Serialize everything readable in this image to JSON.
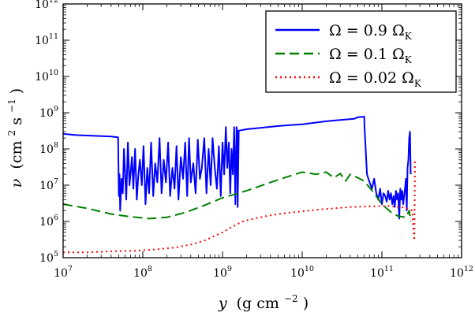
{
  "chart_data": {
    "type": "line",
    "xlabel": {
      "var": "y",
      "unit_main": "(g cm",
      "unit_sup": "−2",
      "unit_end": ")"
    },
    "ylabel": {
      "var": "ν",
      "unit_main": "(cm",
      "unit_sup1": "2",
      "unit_mid": "s",
      "unit_sup2": "−1",
      "unit_end": ")"
    },
    "x_scale": "log",
    "y_scale": "log",
    "xlim": [
      10000000.0,
      1000000000000.0
    ],
    "ylim": [
      100000.0,
      1000000000000.0
    ],
    "x_ticks": [
      {
        "base": "10",
        "exp": "7",
        "value": 10000000.0
      },
      {
        "base": "10",
        "exp": "8",
        "value": 100000000.0
      },
      {
        "base": "10",
        "exp": "9",
        "value": 1000000000.0
      },
      {
        "base": "10",
        "exp": "10",
        "value": 10000000000.0
      },
      {
        "base": "10",
        "exp": "11",
        "value": 100000000000.0
      },
      {
        "base": "10",
        "exp": "12",
        "value": 1000000000000.0
      }
    ],
    "y_ticks": [
      {
        "base": "10",
        "exp": "5",
        "value": 100000.0
      },
      {
        "base": "10",
        "exp": "6",
        "value": 1000000.0
      },
      {
        "base": "10",
        "exp": "7",
        "value": 10000000.0
      },
      {
        "base": "10",
        "exp": "8",
        "value": 100000000.0
      },
      {
        "base": "10",
        "exp": "9",
        "value": 1000000000.0
      },
      {
        "base": "10",
        "exp": "10",
        "value": 10000000000.0
      },
      {
        "base": "10",
        "exp": "11",
        "value": 100000000000.0
      },
      {
        "base": "10",
        "exp": "12",
        "value": 1000000000000.0
      }
    ],
    "grid": false,
    "legend_position": "top-right",
    "series": [
      {
        "name": "Ω = 0.9 ΩK",
        "legend": {
          "lhs": "Ω = 0.9 Ω",
          "sub": "K"
        },
        "color": "#0000ff",
        "dash": "solid",
        "x": [
          10000000.0,
          15000000.0,
          25000000.0,
          40000000.0,
          49000000.0,
          50000000.0,
          51000000.0,
          52000000.0,
          54000000.0,
          56000000.0,
          58000000.0,
          60000000.0,
          62000000.0,
          65000000.0,
          68000000.0,
          70000000.0,
          73000000.0,
          76000000.0,
          80000000.0,
          84000000.0,
          88000000.0,
          92000000.0,
          97000000.0,
          102000000.0,
          108000000.0,
          114000000.0,
          120000000.0,
          127000000.0,
          135000000.0,
          143000000.0,
          152000000.0,
          162000000.0,
          172000000.0,
          183000000.0,
          195000000.0,
          208000000.0,
          220000000.0,
          235000000.0,
          250000000.0,
          265000000.0,
          280000000.0,
          300000000.0,
          320000000.0,
          340000000.0,
          360000000.0,
          380000000.0,
          400000000.0,
          430000000.0,
          460000000.0,
          490000000.0,
          520000000.0,
          550000000.0,
          590000000.0,
          630000000.0,
          670000000.0,
          710000000.0,
          750000000.0,
          800000000.0,
          850000000.0,
          900000000.0,
          950000000.0,
          1000000000.0,
          1050000000.0,
          1100000000.0,
          1150000000.0,
          1200000000.0,
          1250000000.0,
          1300000000.0,
          1350000000.0,
          1400000000.0,
          1450000000.0,
          1500000000.0,
          1530000000.0,
          1550000000.0,
          1600000000.0,
          2000000000.0,
          3000000000.0,
          5000000000.0,
          10000000000.0,
          20000000000.0,
          30000000000.0,
          45000000000.0,
          50000000000.0,
          60000000000.0,
          60500000000.0,
          65000000000.0,
          70000000000.0,
          75000000000.0,
          80000000000.0,
          85000000000.0,
          90000000000.0,
          95000000000.0,
          100000000000.0,
          105000000000.0,
          110000000000.0,
          115000000000.0,
          120000000000.0,
          125000000000.0,
          130000000000.0,
          135000000000.0,
          140000000000.0,
          145000000000.0,
          150000000000.0,
          155000000000.0,
          160000000000.0,
          165000000000.0,
          170000000000.0,
          175000000000.0,
          180000000000.0,
          185000000000.0,
          190000000000.0,
          195000000000.0,
          200000000000.0,
          205000000000.0,
          210000000000.0,
          215000000000.0,
          220000000000.0,
          225000000000.0,
          230000000000.0
        ],
        "y": [
          260000000.0,
          240000000.0,
          230000000.0,
          220000000.0,
          210000000.0,
          5000000.0,
          20000000.0,
          2000000.0,
          15000000.0,
          6000000.0,
          100000000.0,
          20000000.0,
          4000000.0,
          150000000.0,
          10000000.0,
          20000000.0,
          60000000.0,
          8000000.0,
          100000000.0,
          4000000.0,
          20000000.0,
          50000000.0,
          10000000.0,
          120000000.0,
          3000000.0,
          30000000.0,
          6000000.0,
          150000000.0,
          5000000.0,
          40000000.0,
          12000000.0,
          200000000.0,
          6000000.0,
          50000000.0,
          12000000.0,
          150000000.0,
          5000000.0,
          30000000.0,
          8000000.0,
          120000000.0,
          4000000.0,
          60000000.0,
          15000000.0,
          150000000.0,
          5000000.0,
          200000000.0,
          12000000.0,
          40000000.0,
          6000000.0,
          180000000.0,
          15000000.0,
          30000000.0,
          200000000.0,
          6000000.0,
          100000000.0,
          10000000.0,
          200000000.0,
          30000000.0,
          8000000.0,
          120000000.0,
          5000000.0,
          150000000.0,
          20000000.0,
          400000000.0,
          30000000.0,
          150000000.0,
          6000000.0,
          100000000.0,
          20000000.0,
          400000000.0,
          3000000.0,
          400000000.0,
          300000000.0,
          2500000.0,
          320000000.0,
          350000000.0,
          380000000.0,
          430000000.0,
          480000000.0,
          580000000.0,
          630000000.0,
          680000000.0,
          750000000.0,
          780000000.0,
          400000000.0,
          20000000.0,
          12000000.0,
          8000000.0,
          15000000.0,
          6000000.0,
          4000000.0,
          8000000.0,
          3000000.0,
          6000000.0,
          5000000.0,
          3500000.0,
          7000000.0,
          4000000.0,
          6000000.0,
          3000000.0,
          5000000.0,
          2500000.0,
          7000000.0,
          4000000.0,
          6000000.0,
          1200000.0,
          8000000.0,
          4000000.0,
          7000000.0,
          3000000.0,
          5000000.0,
          8000000.0,
          15000000.0,
          2000000.0,
          30000000.0,
          50000000.0,
          200000000.0,
          300000000.0,
          20000000.0
        ]
      },
      {
        "name": "Ω = 0.1 ΩK",
        "legend": {
          "lhs": "Ω = 0.1 Ω",
          "sub": "K"
        },
        "color": "#008000",
        "dash": "dashed",
        "x": [
          10000000.0,
          20000000.0,
          40000000.0,
          70000000.0,
          120000000.0,
          200000000.0,
          350000000.0,
          600000000.0,
          1000000000.0,
          2000000000.0,
          4000000000.0,
          7000000000.0,
          10000000000.0,
          15000000000.0,
          20000000000.0,
          25000000000.0,
          30000000000.0,
          35000000000.0,
          40000000000.0,
          50000000000.0,
          60000000000.0,
          80000000000.0,
          100000000000.0,
          130000000000.0,
          160000000000.0,
          200000000000.0,
          220000000000.0,
          230000000000.0
        ],
        "y": [
          3000000.0,
          2300000.0,
          1600000.0,
          1350000.0,
          1200000.0,
          1300000.0,
          1800000.0,
          2800000.0,
          4500000.0,
          7000000.0,
          12000000.0,
          18000000.0,
          23000000.0,
          20000000.0,
          23000000.0,
          16000000.0,
          21000000.0,
          13000000.0,
          20000000.0,
          16000000.0,
          13000000.0,
          6000000.0,
          3000000.0,
          1800000.0,
          1400000.0,
          1300000.0,
          2000000.0,
          1000000.0
        ]
      },
      {
        "name": "Ω = 0.02 ΩK",
        "legend": {
          "lhs": "Ω = 0.02 Ω",
          "sub": "K"
        },
        "color": "#ff0000",
        "dash": "dotted",
        "x": [
          10000000.0,
          20000000.0,
          40000000.0,
          80000000.0,
          150000000.0,
          250000000.0,
          400000000.0,
          600000000.0,
          800000000.0,
          1000000000.0,
          1300000000.0,
          1800000000.0,
          2500000000.0,
          3500000000.0,
          5000000000.0,
          7000000000.0,
          10000000000.0,
          15000000000.0,
          25000000000.0,
          40000000000.0,
          70000000000.0,
          120000000000.0,
          200000000000.0,
          240000000000.0,
          250000000000.0,
          255000000000.0,
          260000000000.0
        ],
        "y": [
          140000.0,
          140000.0,
          150000.0,
          155000.0,
          170000.0,
          190000.0,
          230000.0,
          300000.0,
          400000.0,
          500000.0,
          700000.0,
          1000000.0,
          1200000.0,
          1400000.0,
          1600000.0,
          1750000.0,
          1900000.0,
          2100000.0,
          2300000.0,
          2500000.0,
          2600000.0,
          2700000.0,
          2400000.0,
          2000000.0,
          500000.0,
          300000.0,
          45000000.0
        ]
      }
    ]
  }
}
